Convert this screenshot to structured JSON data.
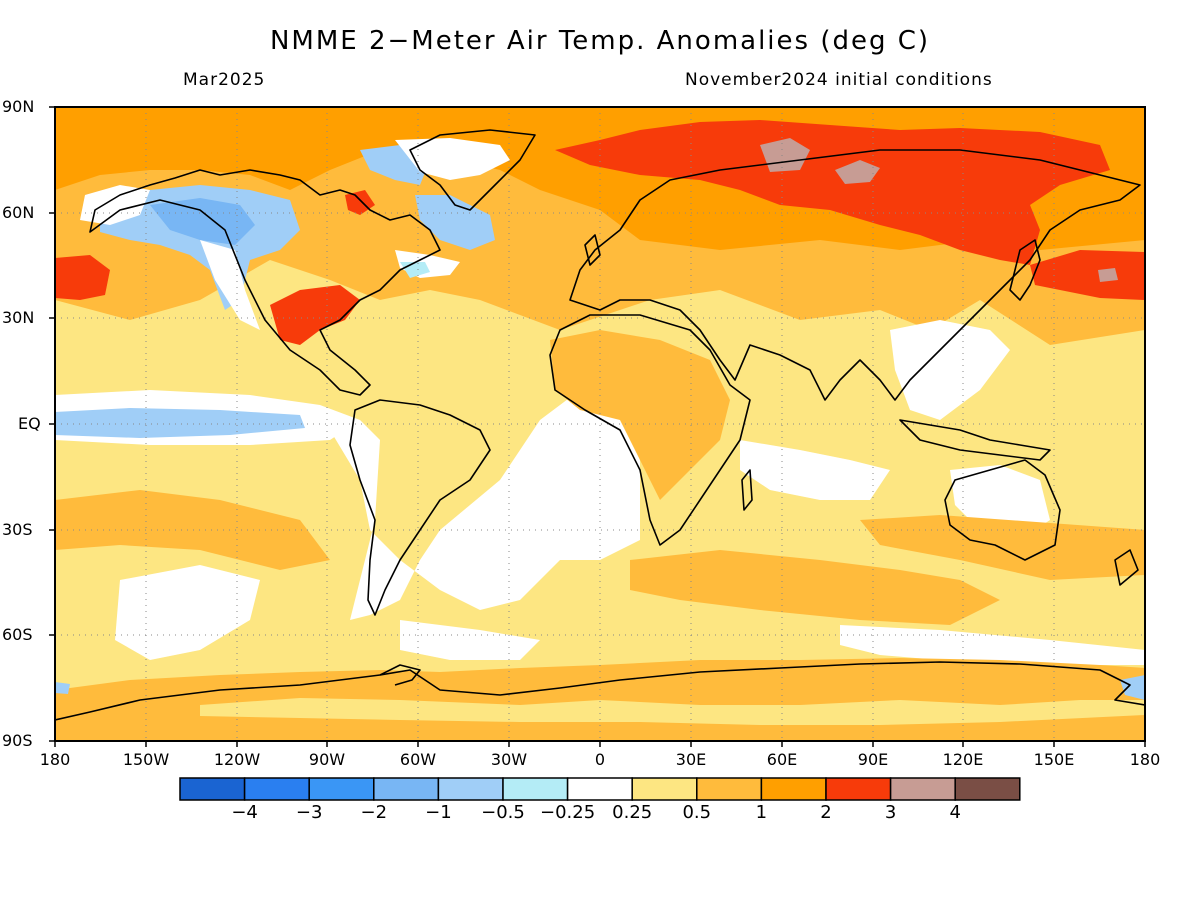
{
  "title": "NMME 2−Meter Air Temp. Anomalies (deg C)",
  "subtitle_left": "Mar2025",
  "subtitle_right": "November2024 initial conditions",
  "lat_labels": [
    "90N",
    "60N",
    "30N",
    "EQ",
    "30S",
    "60S",
    "90S"
  ],
  "lon_labels": [
    "180",
    "150W",
    "120W",
    "90W",
    "60W",
    "30W",
    "0",
    "30E",
    "60E",
    "90E",
    "120E",
    "150E",
    "180"
  ],
  "colorbar": {
    "colors": [
      "#1a64d2",
      "#2a7ff0",
      "#3a96f5",
      "#78b6f4",
      "#a0cef7",
      "#b4ecf6",
      "#ffffff",
      "#fde682",
      "#ffbb3c",
      "#ff9f00",
      "#f73b0a",
      "#c79c94",
      "#7a4e45"
    ],
    "labels": [
      "−4",
      "−3",
      "−2",
      "−1",
      "−0.5",
      "−0.25",
      "0.25",
      "0.5",
      "1",
      "2",
      "3",
      "4"
    ]
  }
}
